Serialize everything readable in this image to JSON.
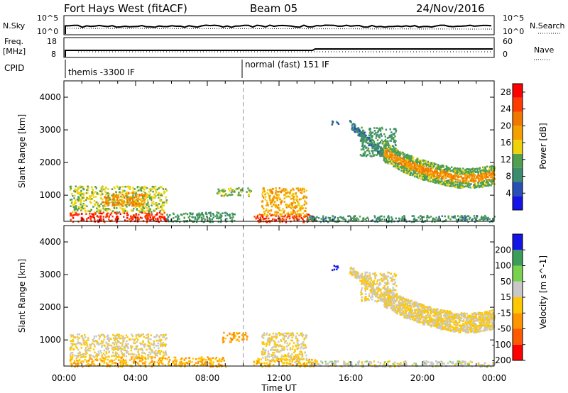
{
  "header": {
    "station": "Fort Hays West (fitACF)",
    "beam": "Beam 05",
    "date": "24/Nov/2016"
  },
  "top_panels": {
    "nsky_label": "N.Sky",
    "nsky_ticks": [
      "10^5",
      "10^0"
    ],
    "nsearch_label": "N.Search",
    "nsearch_ticks": [
      "10^5",
      "10^0"
    ],
    "freq_label_1": "Freq.",
    "freq_label_2": "[MHz]",
    "freq_ticks": [
      "18",
      "8"
    ],
    "nave_label": "Nave",
    "nave_ticks": [
      "60",
      "0"
    ],
    "cpid_label": "CPID",
    "cpid_segments": [
      {
        "label": "themis -3300 IF",
        "start_hour": 0
      },
      {
        "label": "normal (fast) 151 IF",
        "start_hour": 10
      }
    ]
  },
  "chart_data": [
    {
      "type": "heatmap",
      "title": "",
      "xlabel": "",
      "ylabel": "Slant Range [km]",
      "xlim_hours": [
        0,
        24
      ],
      "ylim_km": [
        200,
        4500
      ],
      "x_ticks": [
        "00:00",
        "04:00",
        "08:00",
        "12:00",
        "16:00",
        "20:00",
        "00:00"
      ],
      "y_ticks": [
        1000,
        2000,
        3000,
        4000
      ],
      "colorbar_label": "Power [dB]",
      "colorbar_ticks": [
        "4",
        "8",
        "12",
        "16",
        "20",
        "24",
        "28"
      ],
      "colorbar_range": [
        0,
        30
      ],
      "colors": [
        "#1414e6",
        "#2850b4",
        "#3c8c6e",
        "#50a050",
        "#f0d20a",
        "#f5a000",
        "#f07800",
        "#ff3c00",
        "#ff0000"
      ],
      "scatter_regions": [
        {
          "t0": 0.3,
          "t1": 5.7,
          "r0": 200,
          "r1": 500,
          "value": 26
        },
        {
          "t0": 0.3,
          "t1": 5.7,
          "r0": 500,
          "r1": 1300,
          "value": 14
        },
        {
          "t0": 2.1,
          "t1": 4.5,
          "r0": 700,
          "r1": 1100,
          "value": 20
        },
        {
          "t0": 5.7,
          "t1": 9.5,
          "r0": 200,
          "r1": 500,
          "value": 10
        },
        {
          "t0": 8.5,
          "t1": 10.5,
          "r0": 1000,
          "r1": 1250,
          "value": 12
        },
        {
          "t0": 10.5,
          "t1": 14.0,
          "r0": 200,
          "r1": 450,
          "value": 25
        },
        {
          "t0": 11.0,
          "t1": 13.5,
          "r0": 400,
          "r1": 1250,
          "value": 18
        },
        {
          "t0": 13.5,
          "t1": 24.0,
          "r0": 200,
          "r1": 400,
          "value": 9
        },
        {
          "t0": 14.9,
          "t1": 15.3,
          "r0": 3150,
          "r1": 3300,
          "value": 8
        },
        {
          "t0": 16.5,
          "t1": 18.5,
          "r0": 2200,
          "r1": 3100,
          "value": 10
        }
      ],
      "band": {
        "times": [
          17.8,
          19.0,
          20.0,
          21.0,
          22.0,
          23.0,
          24.0
        ],
        "center_km": [
          2350,
          2000,
          1800,
          1650,
          1550,
          1550,
          1650
        ],
        "half_width_km": 300,
        "edge_value": 12,
        "core_value": 20
      },
      "tail": {
        "t0": 15.9,
        "t1": 17.8,
        "r_top": 3200,
        "r_bottom": 2300,
        "value": 8
      }
    },
    {
      "type": "heatmap",
      "title": "",
      "xlabel": "Time UT",
      "ylabel": "Slant Range [km]",
      "xlim_hours": [
        0,
        24
      ],
      "ylim_km": [
        200,
        4500
      ],
      "x_ticks": [
        "00:00",
        "04:00",
        "08:00",
        "12:00",
        "16:00",
        "20:00",
        "00:00"
      ],
      "y_ticks": [
        1000,
        2000,
        3000,
        4000
      ],
      "colorbar_label": "Velocity [m s^-1]",
      "colorbar_ticks": [
        "200",
        "100",
        "50",
        "15",
        "-15",
        "-50",
        "-100",
        "-200"
      ],
      "colorbar_range": [
        -250,
        250
      ],
      "colors": [
        "#ff0000",
        "#ff5a00",
        "#ff9600",
        "#ffc800",
        "#c8c8c8",
        "#78d250",
        "#3c9c5a",
        "#1414e6"
      ],
      "scatter_regions": [
        {
          "t0": 0.3,
          "t1": 9.0,
          "r0": 200,
          "r1": 500,
          "value": -60
        },
        {
          "t0": 0.3,
          "t1": 5.7,
          "r0": 500,
          "r1": 1200,
          "value": 0
        },
        {
          "t0": 8.8,
          "t1": 10.2,
          "r0": 950,
          "r1": 1250,
          "value": -90
        },
        {
          "t0": 10.5,
          "t1": 14.0,
          "r0": 200,
          "r1": 450,
          "value": -40
        },
        {
          "t0": 11.0,
          "t1": 13.5,
          "r0": 400,
          "r1": 1250,
          "value": 0
        },
        {
          "t0": 13.5,
          "t1": 24.0,
          "r0": 200,
          "r1": 380,
          "value": 30
        },
        {
          "t0": 14.9,
          "t1": 15.3,
          "r0": 3150,
          "r1": 3300,
          "value": 220
        },
        {
          "t0": 16.5,
          "t1": 18.5,
          "r0": 2200,
          "r1": 3100,
          "value": 0
        }
      ],
      "band": {
        "times": [
          17.8,
          19.0,
          20.0,
          21.0,
          22.0,
          23.0,
          24.0
        ],
        "center_km": [
          2350,
          2000,
          1800,
          1650,
          1550,
          1550,
          1650
        ],
        "half_width_km": 300,
        "edge_value": 0,
        "core_value": 0
      },
      "tail": {
        "t0": 15.9,
        "t1": 17.8,
        "r_top": 3200,
        "r_bottom": 2300,
        "value": 0
      }
    }
  ]
}
